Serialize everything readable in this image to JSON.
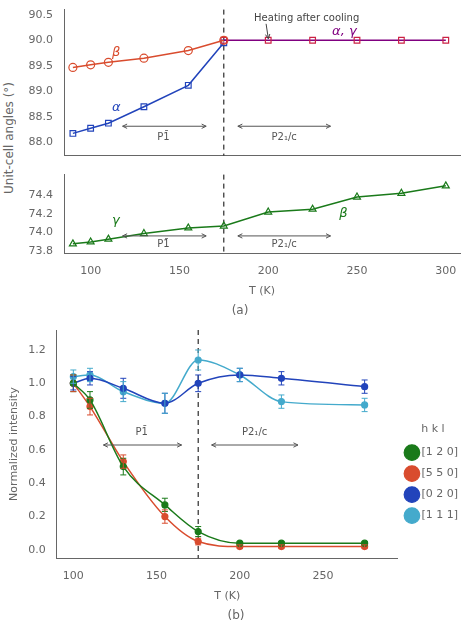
{
  "chart_data": [
    {
      "type": "line",
      "ylabel": "Unit-cell angles (°)",
      "xlim": [
        85,
        308
      ],
      "ylim": [
        87.75,
        90.6
      ],
      "yticks": [
        {
          "value": 88,
          "label": "88.0"
        },
        88.5,
        {
          "value": 89,
          "label": "89.0"
        },
        89.5,
        {
          "value": 90,
          "label": "90.0"
        },
        90.5
      ],
      "grid": false,
      "tick_labels": "y",
      "vline": 175,
      "series": [
        {
          "color": "#d94c2e",
          "marker": "circle",
          "line_style": "solid",
          "x": [
            90,
            100,
            110,
            130,
            155,
            175
          ],
          "values": [
            89.47,
            89.52,
            89.57,
            89.65,
            89.8,
            90.0
          ]
        },
        {
          "color": "#800080",
          "colors": [
            "#cc2244",
            "#cc2244",
            "#cc2244",
            "#cc2244",
            "#cc2244",
            "#cc2244"
          ],
          "marker": "square",
          "line_style": "solid",
          "x": [
            175,
            200,
            225,
            250,
            275,
            300
          ],
          "values": [
            90.0,
            90.0,
            90.0,
            90.0,
            90.0,
            90.0
          ]
        },
        {
          "color": "#2244bb",
          "marker": "square",
          "line_style": "solid",
          "x": [
            90,
            100,
            110,
            130,
            155,
            175
          ],
          "values": [
            88.18,
            88.28,
            88.38,
            88.7,
            89.12,
            89.95
          ]
        }
      ],
      "annotations": [
        {
          "text": "β",
          "color": "#d94c2e"
        },
        {
          "text": "α",
          "color": "#2244bb"
        },
        {
          "text": "α, γ",
          "color": "#800080"
        },
        {
          "text": "P1̄",
          "color": "#555555"
        },
        {
          "text": "P2₁/c",
          "color": "#555555"
        },
        {
          "text": "Heating after cooling",
          "color": "#444444"
        }
      ]
    },
    {
      "type": "line",
      "title": "(a)",
      "xlabel": "T (K)",
      "xlim": [
        85,
        308
      ],
      "ylim": [
        73.78,
        74.62
      ],
      "xticks": [
        100,
        150,
        200,
        250,
        300
      ],
      "yticks": [
        73.8,
        {
          "value": 74,
          "label": "74.0"
        },
        74.2,
        74.4
      ],
      "grid": false,
      "vline": 175,
      "series": [
        {
          "color": "#1a7a1a",
          "marker": "triangle",
          "line_style": "solid",
          "x": [
            90,
            100,
            110,
            130,
            155,
            175,
            200,
            225,
            250,
            275,
            300
          ],
          "values": [
            73.88,
            73.9,
            73.93,
            73.99,
            74.05,
            74.07,
            74.22,
            74.25,
            74.38,
            74.42,
            74.5
          ]
        }
      ],
      "annotations": [
        {
          "text": "γ",
          "color": "#1a7a1a"
        },
        {
          "text": "β",
          "color": "#1a7a1a"
        },
        {
          "text": "P1̄",
          "color": "#555555"
        },
        {
          "text": "P2₁/c",
          "color": "#555555"
        }
      ]
    },
    {
      "type": "line",
      "title": "(b)",
      "xlabel": "T (K)",
      "ylabel": "Normalized intensity",
      "xlim": [
        90,
        295
      ],
      "ylim": [
        -0.05,
        1.32
      ],
      "xticks": [
        100,
        150,
        200,
        250
      ],
      "yticks": [
        {
          "value": 0,
          "label": "0.0"
        },
        0.2,
        0.4,
        0.6,
        0.8,
        {
          "value": 1,
          "label": "1.0"
        },
        1.2
      ],
      "grid": false,
      "vline": 175,
      "legend": "right",
      "legend_title": "h k l",
      "series": [
        {
          "name": "[1 2 0]",
          "color": "#1a7a1a",
          "marker": "circle",
          "line_style": "smooth",
          "x": [
            100,
            110,
            130,
            155,
            175,
            200,
            225,
            275
          ],
          "values": [
            1.0,
            0.9,
            0.5,
            0.27,
            0.11,
            0.04,
            0.04,
            0.04
          ],
          "yerr": [
            0.05,
            0.05,
            0.05,
            0.04,
            0.03,
            0.01,
            0.01,
            0.01
          ]
        },
        {
          "name": "[5 5 0]",
          "color": "#d94c2e",
          "marker": "circle",
          "line_style": "smooth",
          "x": [
            100,
            110,
            130,
            155,
            175,
            200,
            225,
            275
          ],
          "values": [
            1.0,
            0.86,
            0.53,
            0.2,
            0.05,
            0.02,
            0.02,
            0.02
          ],
          "yerr": [
            0.05,
            0.05,
            0.04,
            0.04,
            0.02,
            0.01,
            0.01,
            0.01
          ]
        },
        {
          "name": "[0 2 0]",
          "color": "#2244bb",
          "marker": "circle",
          "line_style": "smooth",
          "x": [
            100,
            110,
            130,
            155,
            175,
            200,
            225,
            275
          ],
          "values": [
            1.0,
            1.03,
            0.97,
            0.88,
            1.0,
            1.05,
            1.03,
            0.98
          ],
          "yerr": [
            0.04,
            0.04,
            0.06,
            0.06,
            0.05,
            0.04,
            0.04,
            0.04
          ]
        },
        {
          "name": "[1 1 1]",
          "color": "#44aacc",
          "marker": "circle",
          "line_style": "smooth",
          "x": [
            100,
            110,
            130,
            155,
            175,
            200,
            225,
            275
          ],
          "values": [
            1.04,
            1.05,
            0.95,
            0.88,
            1.14,
            1.05,
            0.89,
            0.87
          ],
          "yerr": [
            0.04,
            0.04,
            0.06,
            0.06,
            0.06,
            0.04,
            0.04,
            0.04
          ]
        }
      ],
      "annotations": [
        {
          "text": "P1̄",
          "color": "#555555"
        },
        {
          "text": "P2₁/c",
          "color": "#555555"
        }
      ]
    }
  ]
}
